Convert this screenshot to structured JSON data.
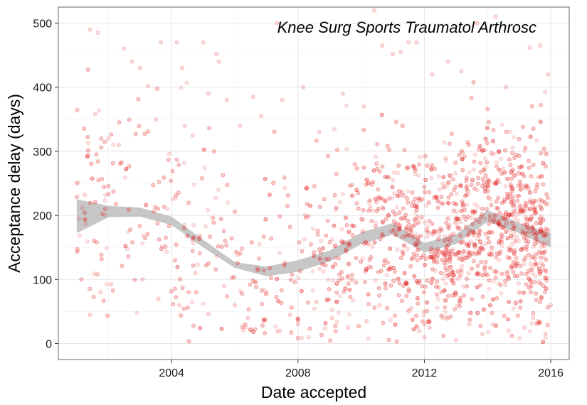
{
  "chart_data": {
    "type": "scatter",
    "title": "",
    "annotation": "Knee Surg Sports Traumatol Arthrosc",
    "xlabel": "Date accepted",
    "ylabel": "Acceptance delay (days)",
    "x_ticks": [
      "2004",
      "2008",
      "2012",
      "2016"
    ],
    "y_ticks": [
      "0",
      "100",
      "200",
      "300",
      "400",
      "500"
    ],
    "xlim": [
      "2000-06-01",
      "2016-08-01"
    ],
    "ylim": [
      -25,
      525
    ],
    "grid": true,
    "legend": "none",
    "colors": {
      "points": "#e31a1c",
      "smooth_band": "#bdbdbd",
      "panel_border": "#808080",
      "grid_major": "#e5e5e5",
      "grid_minor": "#f4f4f4"
    },
    "smooth": {
      "x": [
        "2001-01-01",
        "2002-01-01",
        "2003-01-01",
        "2004-01-01",
        "2005-01-01",
        "2006-01-01",
        "2007-01-01",
        "2008-01-01",
        "2009-01-01",
        "2010-01-01",
        "2011-01-01",
        "2012-01-01",
        "2013-01-01",
        "2014-01-01",
        "2015-01-01",
        "2016-01-01"
      ],
      "lower": [
        172,
        197,
        198,
        185,
        150,
        118,
        105,
        112,
        128,
        155,
        170,
        142,
        155,
        190,
        172,
        150
      ],
      "upper": [
        225,
        215,
        212,
        198,
        162,
        127,
        120,
        130,
        145,
        173,
        188,
        157,
        170,
        208,
        188,
        172
      ]
    },
    "series": [
      {
        "points": [
          [
            "2001-01-01",
            250
          ],
          [
            "2001-04-01",
            232
          ],
          [
            "2001-06-01",
            490
          ],
          [
            "2001-09-01",
            485
          ],
          [
            "2001-08-01",
            358
          ],
          [
            "2002-01-01",
            320
          ],
          [
            "2002-05-01",
            310
          ],
          [
            "2002-07-01",
            460
          ],
          [
            "2002-10-01",
            440
          ],
          [
            "2003-01-01",
            430
          ],
          [
            "2003-04-01",
            402
          ],
          [
            "2003-07-01",
            350
          ],
          [
            "2003-09-01",
            470
          ],
          [
            "2004-03-01",
            470
          ],
          [
            "2004-05-01",
            430
          ],
          [
            "2004-06-01",
            340
          ],
          [
            "2004-09-01",
            325
          ],
          [
            "2005-01-01",
            470
          ],
          [
            "2005-03-01",
            390
          ],
          [
            "2005-06-01",
            452
          ],
          [
            "2005-07-01",
            440
          ],
          [
            "2005-10-01",
            380
          ],
          [
            "2006-03-01",
            340
          ],
          [
            "2006-08-01",
            385
          ],
          [
            "2006-11-01",
            355
          ],
          [
            "2007-05-01",
            500
          ],
          [
            "2007-07-01",
            380
          ],
          [
            "2008-03-01",
            400
          ],
          [
            "2008-09-01",
            330
          ],
          [
            "2009-06-01",
            390
          ],
          [
            "2010-02-01",
            370
          ],
          [
            "2010-06-01",
            520
          ],
          [
            "2010-09-01",
            465
          ],
          [
            "2011-01-01",
            452
          ],
          [
            "2011-04-01",
            455
          ],
          [
            "2011-07-01",
            470
          ],
          [
            "2011-10-01",
            470
          ],
          [
            "2012-04-01",
            420
          ],
          [
            "2012-10-01",
            440
          ],
          [
            "2013-03-01",
            425
          ],
          [
            "2013-09-01",
            500
          ],
          [
            "2014-04-01",
            510
          ],
          [
            "2014-08-01",
            400
          ],
          [
            "2015-05-01",
            462
          ],
          [
            "2015-09-01",
            465
          ],
          [
            "2015-12-01",
            420
          ],
          [
            "2005-03-01",
            46
          ],
          [
            "2001-06-01",
            45
          ],
          [
            "2001-10-01",
            80
          ],
          [
            "2002-02-01",
            92
          ],
          [
            "2003-02-01",
            100
          ],
          [
            "2003-08-01",
            70
          ],
          [
            "2004-04-01",
            60
          ],
          [
            "2004-10-01",
            110
          ],
          [
            "2005-09-01",
            90
          ],
          [
            "2006-01-01",
            60
          ],
          [
            "2006-06-01",
            40
          ],
          [
            "2007-01-01",
            80
          ],
          [
            "2007-06-01",
            20
          ],
          [
            "2007-10-01",
            45
          ],
          [
            "2008-01-01",
            30
          ],
          [
            "2008-05-01",
            10
          ],
          [
            "2008-08-01",
            65
          ],
          [
            "2009-02-01",
            40
          ],
          [
            "2009-08-01",
            25
          ],
          [
            "2010-03-01",
            35
          ],
          [
            "2010-08-01",
            60
          ],
          [
            "2011-02-01",
            30
          ],
          [
            "2011-08-01",
            55
          ],
          [
            "2011-11-01",
            20
          ],
          [
            "2012-01-01",
            10
          ],
          [
            "2012-01-01",
            30
          ],
          [
            "2012-01-01",
            50
          ],
          [
            "2012-03-01",
            25
          ],
          [
            "2012-08-01",
            40
          ],
          [
            "2013-01-01",
            5
          ],
          [
            "2013-06-01",
            30
          ],
          [
            "2013-11-01",
            15
          ],
          [
            "2014-03-01",
            30
          ],
          [
            "2014-09-01",
            20
          ],
          [
            "2015-03-01",
            25
          ],
          [
            "2015-08-01",
            35
          ],
          [
            "2015-11-01",
            15
          ],
          [
            "2016-01-01",
            60
          ]
        ]
      }
    ]
  }
}
